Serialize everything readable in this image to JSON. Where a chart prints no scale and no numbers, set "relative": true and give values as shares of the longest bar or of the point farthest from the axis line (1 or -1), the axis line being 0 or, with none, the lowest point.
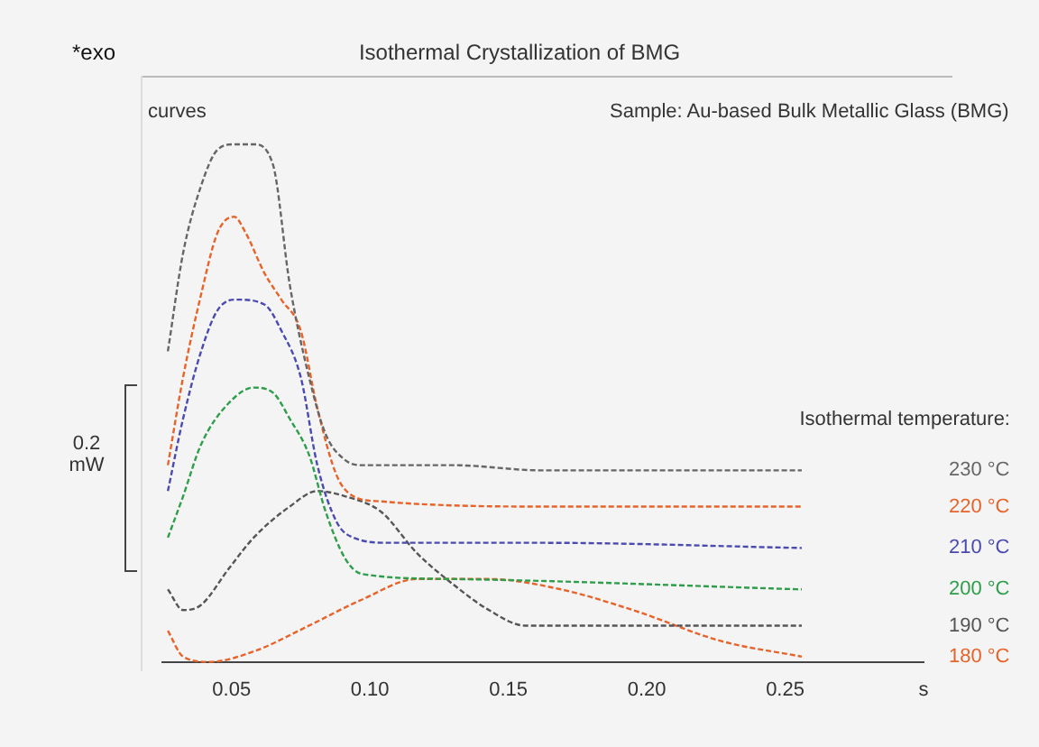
{
  "chart_data": {
    "type": "line",
    "title": "Isothermal Crystallization of BMG",
    "legend_title": "Isothermal temperature:",
    "relative": true,
    "legend": false,
    "grid": false,
    "marker": "none",
    "line_style": "dashed",
    "tick_labels": "x",
    "xlim": [
      0.025,
      0.3
    ],
    "xticks": [
      0.05,
      {
        "value": 0.1,
        "label": "0.10"
      },
      0.15,
      {
        "value": 0.2,
        "label": "0.20"
      },
      0.25,
      {
        "value": 0.3,
        "label": "s"
      }
    ],
    "annotations": [
      "*exo",
      "curves",
      "Sample: Au-based Bulk Metallic Glass (BMG)",
      "0.2 mW"
    ],
    "series": [
      {
        "name": "230 °C",
        "color": "#666666",
        "x": [
          0.027,
          0.0325,
          0.039,
          0.045,
          0.051,
          0.058,
          0.065,
          0.071,
          0.078,
          0.084,
          0.091,
          0.097,
          0.13,
          0.162,
          0.195,
          0.256
        ],
        "values": [
          0.6,
          0.79,
          0.92,
          0.99,
          1.0,
          1.0,
          0.96,
          0.73,
          0.55,
          0.44,
          0.39,
          0.38,
          0.38,
          0.37,
          0.37,
          0.37
        ]
      },
      {
        "name": "220 °C",
        "color": "#e8632a",
        "x": [
          0.027,
          0.0325,
          0.039,
          0.045,
          0.051,
          0.055,
          0.062,
          0.068,
          0.075,
          0.081,
          0.088,
          0.094,
          0.104,
          0.162,
          0.256
        ],
        "values": [
          0.38,
          0.55,
          0.71,
          0.83,
          0.86,
          0.83,
          0.75,
          0.7,
          0.64,
          0.49,
          0.36,
          0.32,
          0.31,
          0.3,
          0.3
        ]
      },
      {
        "name": "210 °C",
        "color": "#4a4ab0",
        "x": [
          0.027,
          0.0325,
          0.039,
          0.045,
          0.052,
          0.062,
          0.068,
          0.075,
          0.081,
          0.088,
          0.094,
          0.107,
          0.162,
          0.256
        ],
        "values": [
          0.33,
          0.47,
          0.6,
          0.68,
          0.7,
          0.69,
          0.64,
          0.55,
          0.38,
          0.27,
          0.24,
          0.23,
          0.23,
          0.22
        ]
      },
      {
        "name": "200 °C",
        "color": "#2e9e4a",
        "x": [
          0.027,
          0.0325,
          0.039,
          0.049,
          0.058,
          0.065,
          0.071,
          0.078,
          0.084,
          0.091,
          0.097,
          0.13,
          0.256
        ],
        "values": [
          0.24,
          0.32,
          0.42,
          0.5,
          0.53,
          0.52,
          0.47,
          0.4,
          0.29,
          0.2,
          0.17,
          0.16,
          0.14
        ]
      },
      {
        "name": "190 °C",
        "color": "#555555",
        "x": [
          0.027,
          0.0325,
          0.039,
          0.049,
          0.058,
          0.071,
          0.081,
          0.091,
          0.104,
          0.117,
          0.13,
          0.143,
          0.156,
          0.256
        ],
        "values": [
          0.14,
          0.1,
          0.11,
          0.18,
          0.24,
          0.3,
          0.33,
          0.32,
          0.29,
          0.21,
          0.15,
          0.1,
          0.07,
          0.07
        ]
      },
      {
        "name": "180 °C",
        "color": "#e8632a",
        "x": [
          0.027,
          0.0325,
          0.042,
          0.058,
          0.078,
          0.097,
          0.117,
          0.143,
          0.169,
          0.195,
          0.227,
          0.256
        ],
        "values": [
          0.06,
          0.01,
          0,
          0.02,
          0.07,
          0.12,
          0.16,
          0.16,
          0.14,
          0.1,
          0.04,
          0.01
        ]
      }
    ]
  }
}
